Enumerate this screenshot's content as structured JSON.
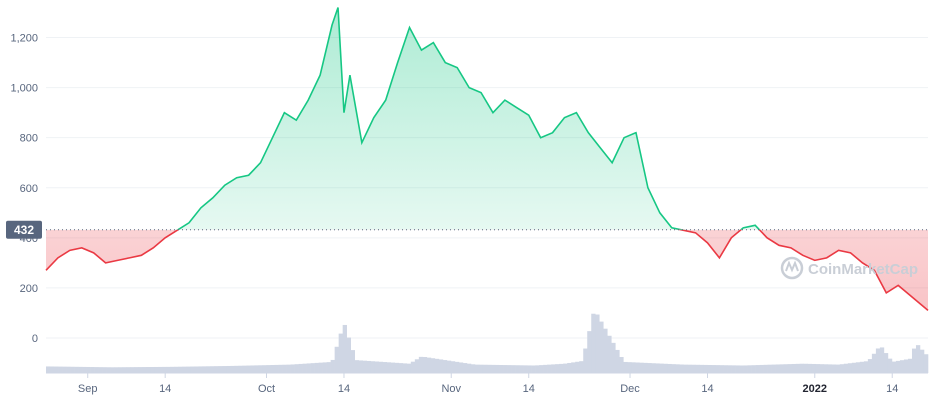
{
  "colors": {
    "up": "#16c784",
    "down": "#ea3943",
    "volume": "#cfd6e4",
    "grid": "#eff2f5",
    "badge": "#58667e",
    "watermark": "#c9ced6"
  },
  "watermark_text": "CoinMarketCap",
  "chart_data": {
    "type": "area",
    "title": "",
    "xlabel": "",
    "ylabel": "",
    "baseline_price": 432,
    "baseline_label": "432",
    "ylim": [
      -140,
      1350
    ],
    "xlim": [
      "2021-08-25",
      "2022-01-20"
    ],
    "y_ticks": [
      0,
      200,
      400,
      600,
      800,
      1000,
      1200
    ],
    "y_tick_labels": [
      "0",
      "200",
      "400",
      "600",
      "800",
      "1,000",
      "1,200"
    ],
    "x_ticks": [
      "2021-09-01",
      "2021-09-14",
      "2021-10-01",
      "2021-10-14",
      "2021-11-01",
      "2021-11-14",
      "2021-12-01",
      "2021-12-14",
      "2022-01-01",
      "2022-01-14"
    ],
    "x_tick_labels": [
      "Sep",
      "14",
      "Oct",
      "14",
      "Nov",
      "14",
      "Dec",
      "14",
      "2022",
      "14"
    ],
    "x_tick_bold": [
      false,
      false,
      false,
      false,
      false,
      false,
      false,
      false,
      true,
      false
    ],
    "grid": true,
    "legend": "none",
    "price_series": {
      "x": [
        "2021-08-25",
        "2021-08-27",
        "2021-08-29",
        "2021-08-31",
        "2021-09-02",
        "2021-09-04",
        "2021-09-06",
        "2021-09-08",
        "2021-09-10",
        "2021-09-12",
        "2021-09-14",
        "2021-09-16",
        "2021-09-18",
        "2021-09-20",
        "2021-09-22",
        "2021-09-24",
        "2021-09-26",
        "2021-09-28",
        "2021-09-30",
        "2021-10-02",
        "2021-10-04",
        "2021-10-06",
        "2021-10-08",
        "2021-10-10",
        "2021-10-12",
        "2021-10-13",
        "2021-10-14",
        "2021-10-15",
        "2021-10-17",
        "2021-10-19",
        "2021-10-21",
        "2021-10-23",
        "2021-10-25",
        "2021-10-27",
        "2021-10-29",
        "2021-10-31",
        "2021-11-02",
        "2021-11-04",
        "2021-11-06",
        "2021-11-08",
        "2021-11-10",
        "2021-11-12",
        "2021-11-14",
        "2021-11-16",
        "2021-11-18",
        "2021-11-20",
        "2021-11-22",
        "2021-11-24",
        "2021-11-26",
        "2021-11-28",
        "2021-11-30",
        "2021-12-02",
        "2021-12-04",
        "2021-12-06",
        "2021-12-08",
        "2021-12-10",
        "2021-12-12",
        "2021-12-14",
        "2021-12-16",
        "2021-12-18",
        "2021-12-20",
        "2021-12-22",
        "2021-12-24",
        "2021-12-26",
        "2021-12-28",
        "2021-12-30",
        "2022-01-01",
        "2022-01-03",
        "2022-01-05",
        "2022-01-07",
        "2022-01-09",
        "2022-01-11",
        "2022-01-13",
        "2022-01-15",
        "2022-01-17",
        "2022-01-19",
        "2022-01-20"
      ],
      "y": [
        270,
        320,
        350,
        360,
        340,
        300,
        310,
        320,
        330,
        360,
        400,
        430,
        460,
        520,
        560,
        610,
        640,
        650,
        700,
        800,
        900,
        870,
        950,
        1050,
        1250,
        1320,
        900,
        1050,
        780,
        880,
        950,
        1100,
        1240,
        1150,
        1180,
        1100,
        1080,
        1000,
        980,
        900,
        950,
        920,
        890,
        800,
        820,
        880,
        900,
        820,
        760,
        700,
        800,
        820,
        600,
        500,
        440,
        430,
        420,
        380,
        320,
        400,
        440,
        450,
        400,
        370,
        360,
        330,
        310,
        320,
        350,
        340,
        300,
        270,
        180,
        210,
        170,
        130,
        110
      ]
    },
    "volume_series": {
      "x": [
        "2021-08-25",
        "2021-09-05",
        "2021-09-15",
        "2021-09-25",
        "2021-10-05",
        "2021-10-12",
        "2021-10-14",
        "2021-10-16",
        "2021-10-25",
        "2021-10-27",
        "2021-11-05",
        "2021-11-15",
        "2021-11-20",
        "2021-11-23",
        "2021-11-25",
        "2021-11-30",
        "2021-12-10",
        "2021-12-20",
        "2021-12-30",
        "2022-01-05",
        "2022-01-10",
        "2022-01-12",
        "2022-01-14",
        "2022-01-17",
        "2022-01-18",
        "2022-01-20"
      ],
      "y": [
        8,
        6,
        7,
        9,
        12,
        18,
        105,
        22,
        14,
        30,
        12,
        10,
        14,
        20,
        135,
        18,
        12,
        10,
        14,
        12,
        20,
        55,
        18,
        25,
        60,
        30
      ]
    }
  }
}
